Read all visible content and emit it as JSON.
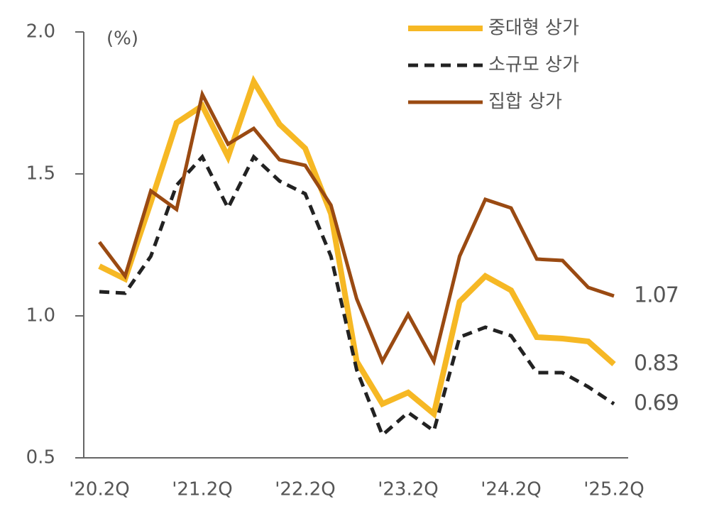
{
  "chart_data": {
    "type": "line",
    "y_label": "(%)",
    "categories": [
      "'20.2Q",
      null,
      null,
      null,
      "'21.2Q",
      null,
      null,
      null,
      "'22.2Q",
      null,
      null,
      null,
      "'23.2Q",
      null,
      null,
      null,
      "'24.2Q",
      null,
      null,
      null,
      "'25.2Q"
    ],
    "series": [
      {
        "name": "중대형 상가",
        "color": "#f6b824",
        "line_style": "solid",
        "values": [
          1.175,
          1.13,
          1.4,
          1.68,
          1.74,
          1.56,
          1.825,
          1.675,
          1.59,
          1.36,
          0.84,
          0.69,
          0.73,
          0.655,
          1.05,
          1.14,
          1.09,
          0.925,
          0.92,
          0.91,
          0.83
        ]
      },
      {
        "name": "소규모 상가",
        "color": "#222222",
        "line_style": "dashed",
        "values": [
          1.085,
          1.08,
          1.21,
          1.46,
          1.56,
          1.38,
          1.56,
          1.475,
          1.43,
          1.21,
          0.81,
          0.58,
          0.66,
          0.595,
          0.925,
          0.96,
          0.93,
          0.8,
          0.8,
          0.75,
          0.69
        ]
      },
      {
        "name": "집합 상가",
        "color": "#9a4a12",
        "line_style": "solid",
        "values": [
          1.26,
          1.14,
          1.44,
          1.375,
          1.78,
          1.605,
          1.66,
          1.55,
          1.53,
          1.39,
          1.06,
          0.84,
          1.005,
          0.84,
          1.21,
          1.41,
          1.38,
          1.2,
          1.195,
          1.1,
          1.07
        ]
      }
    ],
    "ylim": [
      0.5,
      2.0
    ],
    "yticks": [
      {
        "value": 0.5,
        "label": "0.5"
      },
      {
        "value": 1.0,
        "label": "1.0"
      },
      {
        "value": 1.5,
        "label": "1.5"
      },
      {
        "value": 2.0,
        "label": "2.0"
      }
    ],
    "grid": false,
    "legend": "top-right"
  }
}
